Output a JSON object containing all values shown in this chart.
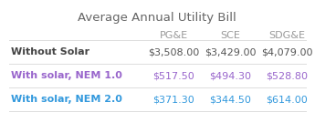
{
  "title": "Average Annual Utility Bill",
  "columns": [
    "PG&E",
    "SCE",
    "SDG&E"
  ],
  "rows": [
    {
      "label": "Without Solar",
      "values": [
        "$3,508.00",
        "$3,429.00",
        "$4,079.00"
      ],
      "label_color": "#444444",
      "value_color": "#555555",
      "label_bold": true
    },
    {
      "label": "With solar, NEM 1.0",
      "values": [
        "$517.50",
        "$494.30",
        "$528.80"
      ],
      "label_color": "#9966cc",
      "value_color": "#9966cc",
      "label_bold": true
    },
    {
      "label": "With solar, NEM 2.0",
      "values": [
        "$371.30",
        "$344.50",
        "$614.00"
      ],
      "label_color": "#3399dd",
      "value_color": "#3399dd",
      "label_bold": true
    }
  ],
  "header_color": "#999999",
  "bg_color": "#ffffff",
  "line_color": "#dddddd",
  "title_color": "#666666",
  "title_fontsize": 9.5,
  "header_fontsize": 8,
  "cell_fontsize": 8,
  "fig_width": 3.45,
  "fig_height": 1.46,
  "dpi": 100
}
